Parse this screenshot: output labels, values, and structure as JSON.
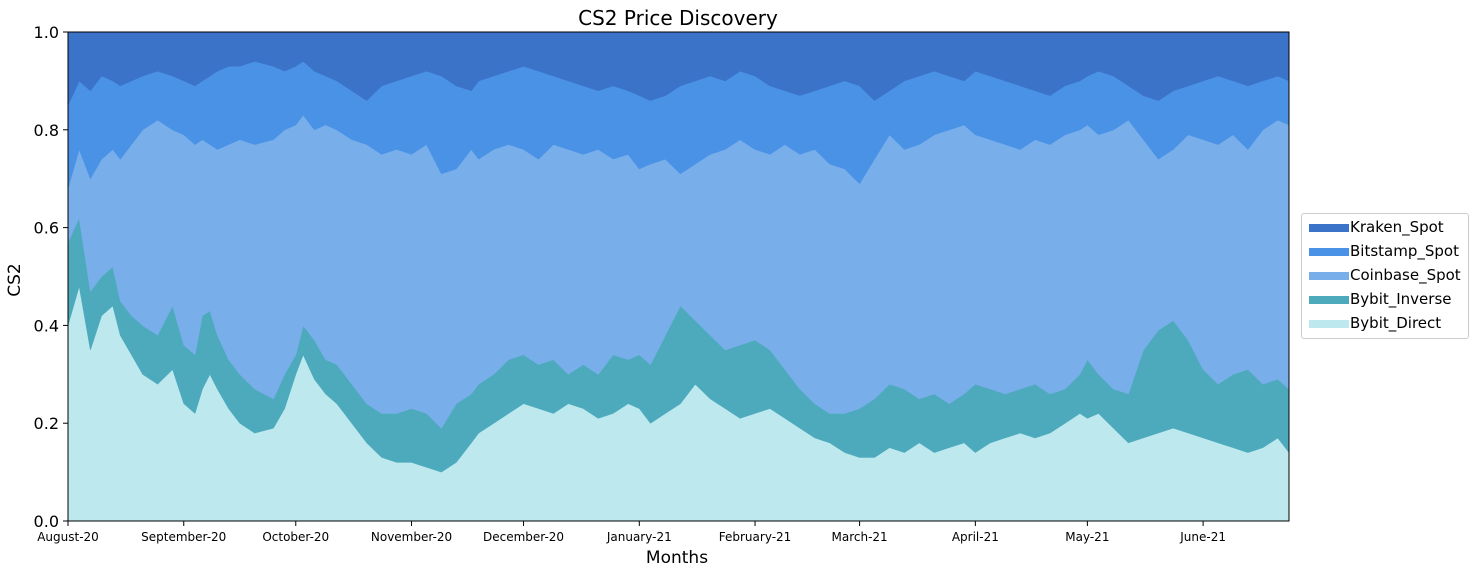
{
  "chart_data": {
    "type": "area",
    "stacked": true,
    "title": "CS2 Price Discovery",
    "xlabel": "Months",
    "ylabel": "CS2",
    "ylim": [
      0.0,
      1.0
    ],
    "yticks": [
      0.0,
      0.2,
      0.4,
      0.6,
      0.8,
      1.0
    ],
    "ytick_labels": [
      "0.0",
      "0.2",
      "0.4",
      "0.6",
      "0.8",
      "1.0"
    ],
    "x_start": "August-20",
    "x_end_day": 327,
    "xticks": [
      {
        "label": "August-20",
        "day": 0
      },
      {
        "label": "September-20",
        "day": 31
      },
      {
        "label": "October-20",
        "day": 61
      },
      {
        "label": "November-20",
        "day": 92
      },
      {
        "label": "December-20",
        "day": 122
      },
      {
        "label": "January-21",
        "day": 153
      },
      {
        "label": "February-21",
        "day": 184
      },
      {
        "label": "March-21",
        "day": 212
      },
      {
        "label": "April-21",
        "day": 243
      },
      {
        "label": "May-21",
        "day": 273
      },
      {
        "label": "June-21",
        "day": 304
      }
    ],
    "series": [
      {
        "name": "Bybit_Direct",
        "color": "#bde8ee",
        "x": [
          0,
          3,
          6,
          9,
          12,
          14,
          17,
          20,
          24,
          28,
          31,
          34,
          36,
          38,
          40,
          43,
          46,
          50,
          55,
          58,
          61,
          63,
          66,
          69,
          72,
          76,
          80,
          84,
          88,
          92,
          96,
          100,
          104,
          108,
          110,
          114,
          118,
          122,
          126,
          130,
          134,
          138,
          142,
          146,
          150,
          153,
          156,
          160,
          164,
          168,
          172,
          176,
          180,
          184,
          188,
          192,
          196,
          200,
          204,
          208,
          212,
          216,
          220,
          224,
          228,
          232,
          236,
          240,
          243,
          247,
          251,
          255,
          259,
          263,
          267,
          271,
          273,
          276,
          280,
          284,
          288,
          292,
          296,
          300,
          304,
          308,
          312,
          316,
          320,
          324,
          327
        ],
        "cum": [
          0.4,
          0.48,
          0.35,
          0.42,
          0.44,
          0.38,
          0.34,
          0.3,
          0.28,
          0.31,
          0.24,
          0.22,
          0.27,
          0.3,
          0.27,
          0.23,
          0.2,
          0.18,
          0.19,
          0.23,
          0.3,
          0.34,
          0.29,
          0.26,
          0.24,
          0.2,
          0.16,
          0.13,
          0.12,
          0.12,
          0.11,
          0.1,
          0.12,
          0.16,
          0.18,
          0.2,
          0.22,
          0.24,
          0.23,
          0.22,
          0.24,
          0.23,
          0.21,
          0.22,
          0.24,
          0.23,
          0.2,
          0.22,
          0.24,
          0.28,
          0.25,
          0.23,
          0.21,
          0.22,
          0.23,
          0.21,
          0.19,
          0.17,
          0.16,
          0.14,
          0.13,
          0.13,
          0.15,
          0.14,
          0.16,
          0.14,
          0.15,
          0.16,
          0.14,
          0.16,
          0.17,
          0.18,
          0.17,
          0.18,
          0.2,
          0.22,
          0.21,
          0.22,
          0.19,
          0.16,
          0.17,
          0.18,
          0.19,
          0.18,
          0.17,
          0.16,
          0.15,
          0.14,
          0.15,
          0.17,
          0.14
        ]
      },
      {
        "name": "Bybit_Inverse",
        "color": "#4daabd",
        "x": [
          0,
          3,
          6,
          9,
          12,
          14,
          17,
          20,
          24,
          28,
          31,
          34,
          36,
          38,
          40,
          43,
          46,
          50,
          55,
          58,
          61,
          63,
          66,
          69,
          72,
          76,
          80,
          84,
          88,
          92,
          96,
          100,
          104,
          108,
          110,
          114,
          118,
          122,
          126,
          130,
          134,
          138,
          142,
          146,
          150,
          153,
          156,
          160,
          164,
          168,
          172,
          176,
          180,
          184,
          188,
          192,
          196,
          200,
          204,
          208,
          212,
          216,
          220,
          224,
          228,
          232,
          236,
          240,
          243,
          247,
          251,
          255,
          259,
          263,
          267,
          271,
          273,
          276,
          280,
          284,
          288,
          292,
          296,
          300,
          304,
          308,
          312,
          316,
          320,
          324,
          327
        ],
        "cum": [
          0.57,
          0.62,
          0.47,
          0.5,
          0.52,
          0.45,
          0.42,
          0.4,
          0.38,
          0.44,
          0.36,
          0.34,
          0.42,
          0.43,
          0.38,
          0.33,
          0.3,
          0.27,
          0.25,
          0.3,
          0.34,
          0.4,
          0.37,
          0.33,
          0.32,
          0.28,
          0.24,
          0.22,
          0.22,
          0.23,
          0.22,
          0.19,
          0.24,
          0.26,
          0.28,
          0.3,
          0.33,
          0.34,
          0.32,
          0.33,
          0.3,
          0.32,
          0.3,
          0.34,
          0.33,
          0.34,
          0.32,
          0.38,
          0.44,
          0.41,
          0.38,
          0.35,
          0.36,
          0.37,
          0.35,
          0.31,
          0.27,
          0.24,
          0.22,
          0.22,
          0.23,
          0.25,
          0.28,
          0.27,
          0.25,
          0.26,
          0.24,
          0.26,
          0.28,
          0.27,
          0.26,
          0.27,
          0.28,
          0.26,
          0.27,
          0.3,
          0.33,
          0.3,
          0.27,
          0.26,
          0.35,
          0.39,
          0.41,
          0.37,
          0.31,
          0.28,
          0.3,
          0.31,
          0.28,
          0.29,
          0.27
        ]
      },
      {
        "name": "Coinbase_Spot",
        "color": "#78aeea",
        "x": [
          0,
          3,
          6,
          9,
          12,
          14,
          17,
          20,
          24,
          28,
          31,
          34,
          36,
          38,
          40,
          43,
          46,
          50,
          55,
          58,
          61,
          63,
          66,
          69,
          72,
          76,
          80,
          84,
          88,
          92,
          96,
          100,
          104,
          108,
          110,
          114,
          118,
          122,
          126,
          130,
          134,
          138,
          142,
          146,
          150,
          153,
          156,
          160,
          164,
          168,
          172,
          176,
          180,
          184,
          188,
          192,
          196,
          200,
          204,
          208,
          212,
          216,
          220,
          224,
          228,
          232,
          236,
          240,
          243,
          247,
          251,
          255,
          259,
          263,
          267,
          271,
          273,
          276,
          280,
          284,
          288,
          292,
          296,
          300,
          304,
          308,
          312,
          316,
          320,
          324,
          327
        ],
        "cum": [
          0.68,
          0.76,
          0.7,
          0.74,
          0.76,
          0.74,
          0.77,
          0.8,
          0.82,
          0.8,
          0.79,
          0.77,
          0.78,
          0.77,
          0.76,
          0.77,
          0.78,
          0.77,
          0.78,
          0.8,
          0.81,
          0.83,
          0.8,
          0.81,
          0.8,
          0.78,
          0.77,
          0.75,
          0.76,
          0.75,
          0.77,
          0.71,
          0.72,
          0.76,
          0.74,
          0.76,
          0.77,
          0.76,
          0.74,
          0.77,
          0.76,
          0.75,
          0.76,
          0.74,
          0.75,
          0.72,
          0.73,
          0.74,
          0.71,
          0.73,
          0.75,
          0.76,
          0.78,
          0.76,
          0.75,
          0.77,
          0.75,
          0.76,
          0.73,
          0.72,
          0.69,
          0.74,
          0.79,
          0.76,
          0.77,
          0.79,
          0.8,
          0.81,
          0.79,
          0.78,
          0.77,
          0.76,
          0.78,
          0.77,
          0.79,
          0.8,
          0.81,
          0.79,
          0.8,
          0.82,
          0.78,
          0.74,
          0.76,
          0.79,
          0.78,
          0.77,
          0.79,
          0.76,
          0.8,
          0.82,
          0.81
        ]
      },
      {
        "name": "Bitstamp_Spot",
        "color": "#4a92e6",
        "x": [
          0,
          3,
          6,
          9,
          12,
          14,
          17,
          20,
          24,
          28,
          31,
          34,
          36,
          38,
          40,
          43,
          46,
          50,
          55,
          58,
          61,
          63,
          66,
          69,
          72,
          76,
          80,
          84,
          88,
          92,
          96,
          100,
          104,
          108,
          110,
          114,
          118,
          122,
          126,
          130,
          134,
          138,
          142,
          146,
          150,
          153,
          156,
          160,
          164,
          168,
          172,
          176,
          180,
          184,
          188,
          192,
          196,
          200,
          204,
          208,
          212,
          216,
          220,
          224,
          228,
          232,
          236,
          240,
          243,
          247,
          251,
          255,
          259,
          263,
          267,
          271,
          273,
          276,
          280,
          284,
          288,
          292,
          296,
          300,
          304,
          308,
          312,
          316,
          320,
          324,
          327
        ],
        "cum": [
          0.85,
          0.9,
          0.88,
          0.91,
          0.9,
          0.89,
          0.9,
          0.91,
          0.92,
          0.91,
          0.9,
          0.89,
          0.9,
          0.91,
          0.92,
          0.93,
          0.93,
          0.94,
          0.93,
          0.92,
          0.93,
          0.94,
          0.92,
          0.91,
          0.9,
          0.88,
          0.86,
          0.89,
          0.9,
          0.91,
          0.92,
          0.91,
          0.89,
          0.88,
          0.9,
          0.91,
          0.92,
          0.93,
          0.92,
          0.91,
          0.9,
          0.89,
          0.88,
          0.89,
          0.88,
          0.87,
          0.86,
          0.87,
          0.89,
          0.9,
          0.91,
          0.9,
          0.92,
          0.91,
          0.89,
          0.88,
          0.87,
          0.88,
          0.89,
          0.9,
          0.89,
          0.86,
          0.88,
          0.9,
          0.91,
          0.92,
          0.91,
          0.9,
          0.92,
          0.91,
          0.9,
          0.89,
          0.88,
          0.87,
          0.89,
          0.9,
          0.91,
          0.92,
          0.91,
          0.89,
          0.87,
          0.86,
          0.88,
          0.89,
          0.9,
          0.91,
          0.9,
          0.89,
          0.9,
          0.91,
          0.9
        ]
      },
      {
        "name": "Kraken_Spot",
        "color": "#3b73c8",
        "x": [
          0,
          327
        ],
        "cum": [
          1.0,
          1.0
        ]
      }
    ],
    "legend": {
      "position": "center-right",
      "order": [
        "Kraken_Spot",
        "Bitstamp_Spot",
        "Coinbase_Spot",
        "Bybit_Inverse",
        "Bybit_Direct"
      ]
    }
  }
}
